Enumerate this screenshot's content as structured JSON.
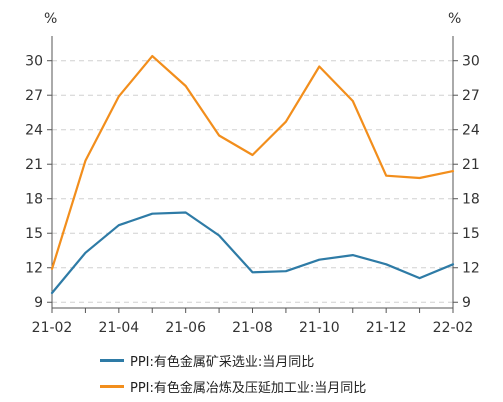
{
  "chart_data": {
    "type": "line",
    "unit_left": "%",
    "unit_right": "%",
    "x": [
      "21-02",
      "21-03",
      "21-04",
      "21-05",
      "21-06",
      "21-07",
      "21-08",
      "21-09",
      "21-10",
      "21-11",
      "21-12",
      "22-01",
      "22-02"
    ],
    "x_tick_labels": [
      "21-02",
      "21-04",
      "21-06",
      "21-08",
      "21-10",
      "21-12",
      "22-02"
    ],
    "y_ticks": [
      9,
      12,
      15,
      18,
      21,
      24,
      27,
      30
    ],
    "ylim": [
      8.5,
      31.8
    ],
    "grid": true,
    "legend_position": "bottom",
    "series": [
      {
        "name": "PPI:有色金属矿采选业:当月同比",
        "color": "#2e7ba6",
        "values": [
          9.8,
          13.3,
          15.7,
          16.7,
          16.8,
          14.8,
          11.6,
          11.7,
          12.7,
          13.1,
          12.3,
          11.1,
          12.3
        ]
      },
      {
        "name": "PPI:有色金属冶炼及压延加工业:当月同比",
        "color": "#f28e1c",
        "values": [
          11.9,
          21.3,
          26.9,
          30.4,
          27.8,
          23.5,
          21.8,
          24.7,
          29.5,
          26.5,
          20.0,
          19.8,
          20.4
        ]
      }
    ]
  }
}
